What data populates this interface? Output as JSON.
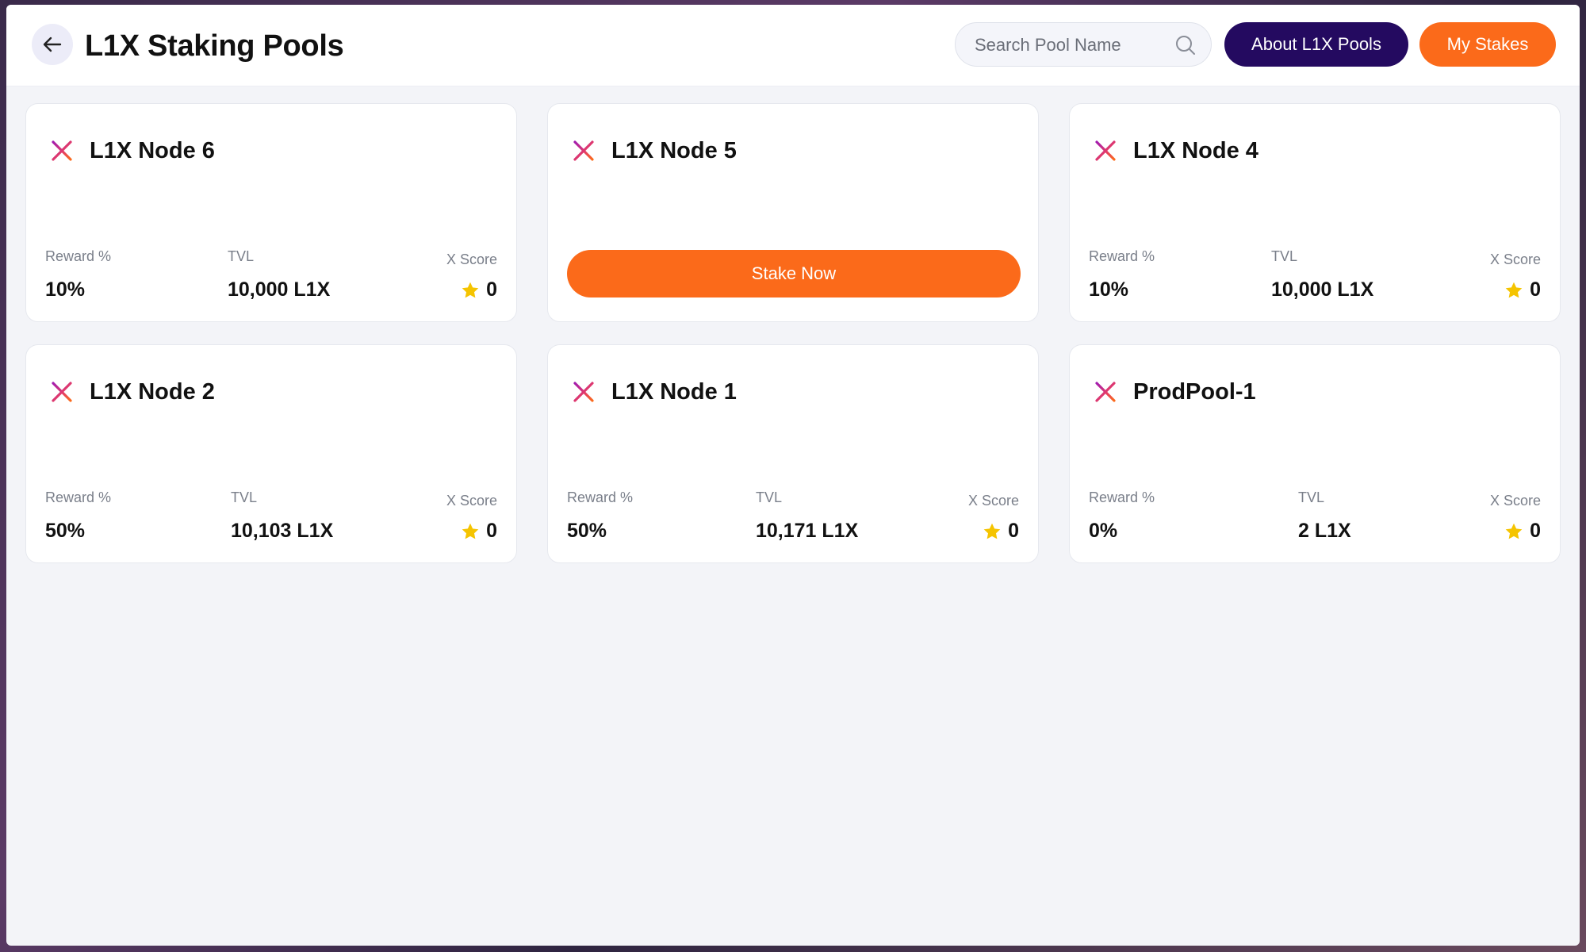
{
  "header": {
    "title": "L1X Staking Pools",
    "search_placeholder": "Search Pool Name",
    "about_label": "About L1X Pools",
    "stakes_label": "My Stakes"
  },
  "labels": {
    "reward": "Reward %",
    "tvl": "TVL",
    "xscore": "X Score"
  },
  "pools": [
    {
      "name": "L1X Node 6",
      "reward": "10%",
      "tvl": "10,000 L1X",
      "xscore": "0"
    },
    {
      "name": "L1X Node 5",
      "stake_label": "Stake Now"
    },
    {
      "name": "L1X Node 4",
      "reward": "10%",
      "tvl": "10,000 L1X",
      "xscore": "0"
    },
    {
      "name": "L1X Node 2",
      "reward": "50%",
      "tvl": "10,103 L1X",
      "xscore": "0"
    },
    {
      "name": "L1X Node 1",
      "reward": "50%",
      "tvl": "10,171 L1X",
      "xscore": "0"
    },
    {
      "name": "ProdPool-1",
      "reward": "0%",
      "tvl": "2 L1X",
      "xscore": "0"
    }
  ],
  "icons": {
    "back": "arrow-left-icon",
    "search": "search-icon",
    "pool": "l1x-logo-icon",
    "score": "star-icon"
  },
  "colors": {
    "accent_orange": "#fb6a1a",
    "dark_purple": "#240a60",
    "star": "#f5c400"
  }
}
